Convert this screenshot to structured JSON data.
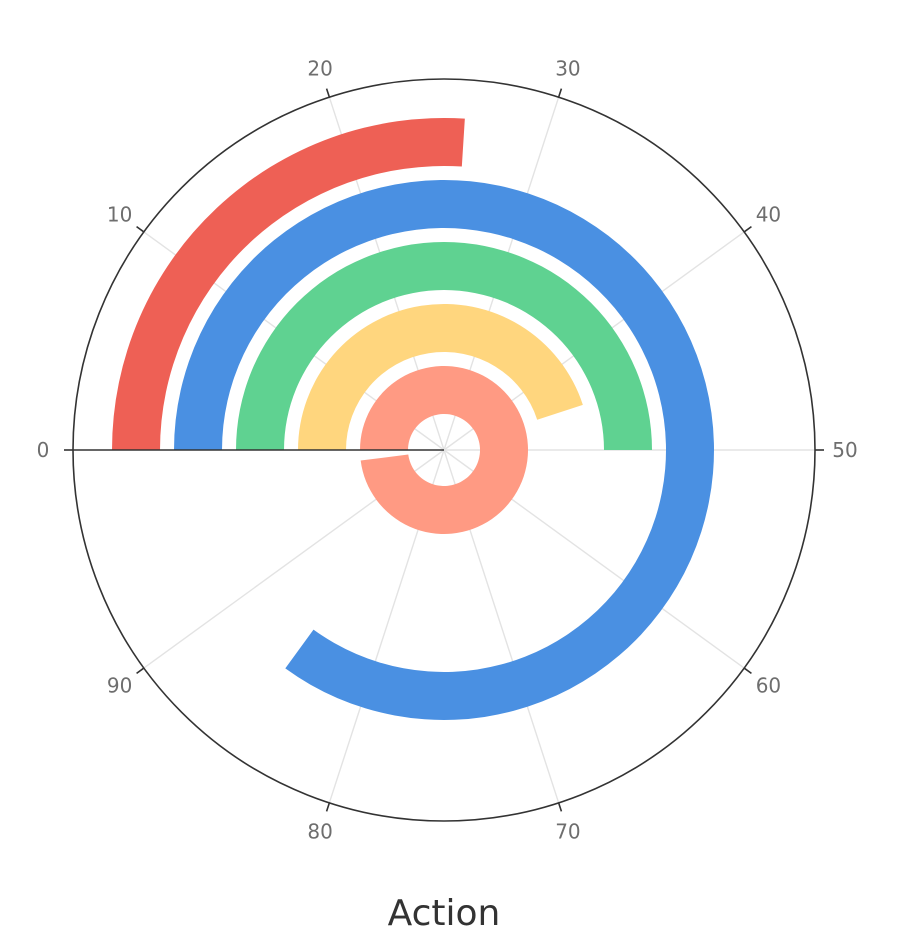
{
  "chart_data": {
    "type": "polar-bar",
    "title": "",
    "xlabel": "Action",
    "angle_axis": {
      "min": 0,
      "max": 100,
      "ticks": [
        0,
        10,
        20,
        30,
        40,
        50,
        60,
        70,
        80,
        90
      ],
      "tick_labels": [
        "0",
        "10",
        "20",
        "30",
        "40",
        "50",
        "60",
        "70",
        "80",
        "90"
      ],
      "clockwise": true,
      "start_position": "left"
    },
    "grid": true,
    "legend": "none",
    "series": [
      {
        "name": "",
        "value": 26,
        "color": "#ee6055"
      },
      {
        "name": "",
        "value": 85,
        "color": "#4a90e2"
      },
      {
        "name": "",
        "value": 50,
        "color": "#5fd291"
      },
      {
        "name": "",
        "value": 45,
        "color": "#ffd67e"
      },
      {
        "name": "",
        "value": 98,
        "color": "#ff9a83"
      }
    ]
  }
}
